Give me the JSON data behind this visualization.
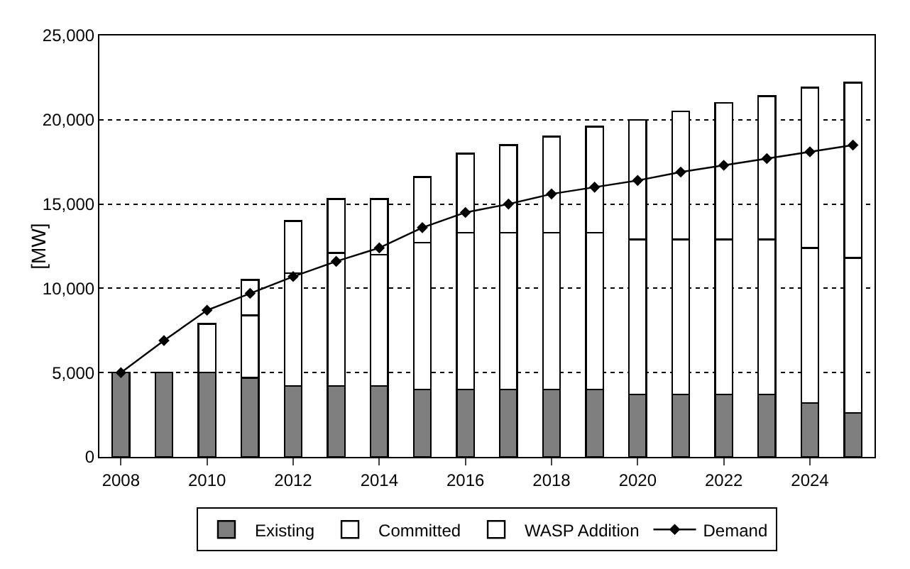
{
  "chart_data": {
    "type": "bar",
    "stacked": true,
    "ylabel": "[MW]",
    "x": [
      2008,
      2009,
      2010,
      2011,
      2012,
      2013,
      2014,
      2015,
      2016,
      2017,
      2018,
      2019,
      2020,
      2021,
      2022,
      2023,
      2024,
      2025
    ],
    "xlim": [
      2007.5,
      2025.5
    ],
    "xticks": [
      2008,
      2010,
      2012,
      2014,
      2016,
      2018,
      2020,
      2022,
      2024
    ],
    "ylim": [
      0,
      25000
    ],
    "yticks": [
      {
        "value": 0,
        "label": "0"
      },
      {
        "value": 5000,
        "label": "5,000"
      },
      {
        "value": 10000,
        "label": "10,000"
      },
      {
        "value": 15000,
        "label": "15,000"
      },
      {
        "value": 20000,
        "label": "20,000"
      },
      {
        "value": 25000,
        "label": "25,000"
      }
    ],
    "grid": "y",
    "legend": "bottom",
    "series": [
      {
        "name": "Existing",
        "color": "#7f7f7f",
        "values": [
          5000,
          5000,
          5000,
          4700,
          4200,
          4200,
          4200,
          4000,
          4000,
          4000,
          4000,
          4000,
          3700,
          3700,
          3700,
          3700,
          3200,
          2600
        ]
      },
      {
        "name": "Committed",
        "color": "#ffffff",
        "values": [
          null,
          null,
          2900,
          3700,
          6700,
          7900,
          7800,
          8700,
          9300,
          9300,
          9300,
          9300,
          9200,
          9200,
          9200,
          9200,
          9200,
          9200
        ]
      },
      {
        "name": "WASP Addition",
        "color": "#ffffff",
        "values": [
          null,
          null,
          null,
          2100,
          3100,
          3200,
          3300,
          3900,
          4700,
          5200,
          5700,
          6300,
          7100,
          7600,
          8100,
          8500,
          9500,
          10400
        ]
      },
      {
        "name": "Demand",
        "type": "line",
        "color": "#000000",
        "marker": "diamond",
        "values": [
          5000,
          6900,
          8700,
          9700,
          10700,
          11600,
          12400,
          13600,
          14500,
          15000,
          15600,
          16000,
          16400,
          16900,
          17300,
          17700,
          18100,
          18500
        ]
      }
    ]
  }
}
